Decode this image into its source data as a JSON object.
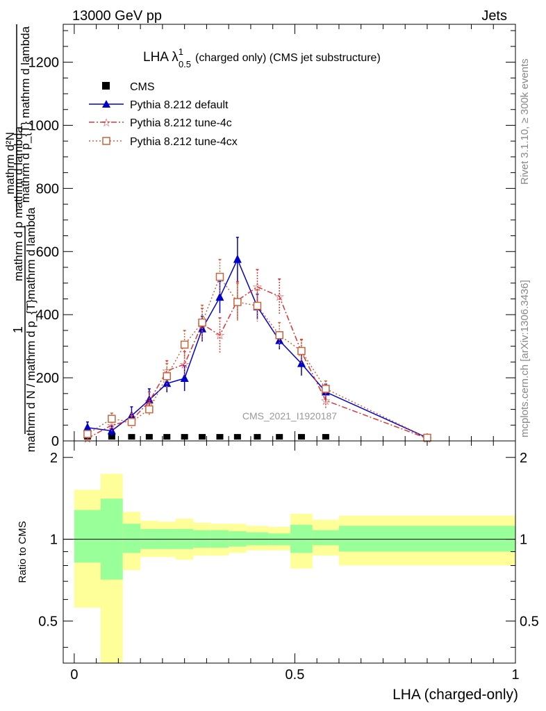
{
  "header": {
    "left": "13000 GeV pp",
    "right": "Jets"
  },
  "side": {
    "rivet": "Rivet 3.1.10, ≥ 300k events",
    "mcplots": "mcplots.cern.ch [arXiv:1306.3436]"
  },
  "watermark": "CMS_2021_I1920187",
  "colors": {
    "cms": "#000000",
    "default": "#0000cc",
    "tune4c": "#dd3333",
    "tune4cx": "#c8643c",
    "band1": "#99ff99",
    "band2": "#ffff99"
  },
  "chart_data": {
    "type": "line",
    "title": "LHA λ",
    "title_sup": "1",
    "title_sub": "0.5",
    "title_rest": "(charged only) (CMS jet substructure)",
    "xlabel": "LHA (charged-only)",
    "ylabel": {
      "numerator": "1",
      "denominator": "mathrm d N / mathrm d p_{T}mathrm d lambda",
      "mid": "mathrm d p mathrm d lambda",
      "num2": "mathrm d²N",
      "den2": "mathrm d p_{T} mathrm d lambda"
    },
    "xlim": [
      -0.025,
      1.0
    ],
    "ylim": [
      0,
      1320
    ],
    "xticks": [
      "0",
      "0.5",
      "1"
    ],
    "yticks": [
      "0",
      "200",
      "400",
      "600",
      "800",
      "1000",
      "1200"
    ],
    "legend": [
      "CMS",
      "Pythia 8.212 default",
      "Pythia 8.212 tune-4c",
      "Pythia 8.212 tune-4cx"
    ],
    "series": [
      {
        "name": "CMS",
        "marker": "square",
        "x": [
          0.03,
          0.085,
          0.13,
          0.17,
          0.21,
          0.25,
          0.29,
          0.33,
          0.37,
          0.415,
          0.465,
          0.515,
          0.57
        ],
        "y": [
          2,
          2,
          2,
          2,
          2,
          2,
          2,
          2,
          2,
          2,
          2,
          2,
          2
        ]
      },
      {
        "name": "Pythia 8.212 default",
        "marker": "triangle",
        "x": [
          0.03,
          0.085,
          0.13,
          0.17,
          0.21,
          0.25,
          0.29,
          0.33,
          0.37,
          0.415,
          0.465,
          0.515,
          0.57,
          0.8
        ],
        "y": [
          42,
          32,
          80,
          130,
          182,
          198,
          355,
          455,
          575,
          425,
          318,
          245,
          155,
          10
        ],
        "err": [
          18,
          15,
          28,
          35,
          28,
          40,
          40,
          50,
          70,
          40,
          28,
          38,
          25,
          5
        ]
      },
      {
        "name": "Pythia 8.212 tune-4c",
        "marker": "star",
        "x": [
          0.03,
          0.085,
          0.13,
          0.17,
          0.21,
          0.25,
          0.29,
          0.33,
          0.37,
          0.415,
          0.465,
          0.515,
          0.57,
          0.8
        ],
        "y": [
          8,
          50,
          65,
          125,
          222,
          243,
          370,
          335,
          445,
          488,
          458,
          282,
          128,
          8
        ],
        "err": [
          8,
          20,
          22,
          30,
          32,
          40,
          50,
          55,
          60,
          55,
          55,
          40,
          25,
          5
        ]
      },
      {
        "name": "Pythia 8.212 tune-4cx",
        "marker": "open-square",
        "x": [
          0.03,
          0.085,
          0.13,
          0.17,
          0.21,
          0.25,
          0.29,
          0.33,
          0.37,
          0.415,
          0.465,
          0.515,
          0.57,
          0.8
        ],
        "y": [
          22,
          70,
          60,
          100,
          205,
          305,
          375,
          520,
          440,
          428,
          335,
          285,
          165,
          10
        ],
        "err": [
          10,
          18,
          20,
          22,
          40,
          45,
          55,
          55,
          60,
          50,
          40,
          35,
          25,
          5
        ]
      }
    ],
    "ratio": {
      "ylabel": "Ratio to CMS",
      "ylim": [
        0.35,
        2.3
      ],
      "yticks": [
        "0.5",
        "1",
        "2"
      ],
      "bins": [
        {
          "lo": 0.0,
          "hi": 0.06,
          "g_lo": 0.82,
          "g_hi": 1.28,
          "y_lo": 0.56,
          "y_hi": 1.52
        },
        {
          "lo": 0.06,
          "hi": 0.11,
          "g_lo": 0.71,
          "g_hi": 1.41,
          "y_lo": 0.35,
          "y_hi": 1.74
        },
        {
          "lo": 0.11,
          "hi": 0.15,
          "g_lo": 0.89,
          "g_hi": 1.14,
          "y_lo": 0.77,
          "y_hi": 1.26
        },
        {
          "lo": 0.15,
          "hi": 0.19,
          "g_lo": 0.92,
          "g_hi": 1.09,
          "y_lo": 0.86,
          "y_hi": 1.17
        },
        {
          "lo": 0.19,
          "hi": 0.23,
          "g_lo": 0.92,
          "g_hi": 1.09,
          "y_lo": 0.86,
          "y_hi": 1.16
        },
        {
          "lo": 0.23,
          "hi": 0.27,
          "g_lo": 0.92,
          "g_hi": 1.09,
          "y_lo": 0.84,
          "y_hi": 1.19
        },
        {
          "lo": 0.27,
          "hi": 0.31,
          "g_lo": 0.93,
          "g_hi": 1.08,
          "y_lo": 0.87,
          "y_hi": 1.15
        },
        {
          "lo": 0.31,
          "hi": 0.35,
          "g_lo": 0.93,
          "g_hi": 1.08,
          "y_lo": 0.87,
          "y_hi": 1.14
        },
        {
          "lo": 0.35,
          "hi": 0.39,
          "g_lo": 0.94,
          "g_hi": 1.07,
          "y_lo": 0.89,
          "y_hi": 1.14
        },
        {
          "lo": 0.39,
          "hi": 0.44,
          "g_lo": 0.95,
          "g_hi": 1.06,
          "y_lo": 0.91,
          "y_hi": 1.12
        },
        {
          "lo": 0.44,
          "hi": 0.49,
          "g_lo": 0.95,
          "g_hi": 1.05,
          "y_lo": 0.91,
          "y_hi": 1.11
        },
        {
          "lo": 0.49,
          "hi": 0.54,
          "g_lo": 0.89,
          "g_hi": 1.13,
          "y_lo": 0.78,
          "y_hi": 1.24
        },
        {
          "lo": 0.54,
          "hi": 0.6,
          "g_lo": 0.95,
          "g_hi": 1.08,
          "y_lo": 0.87,
          "y_hi": 1.18
        },
        {
          "lo": 0.6,
          "hi": 1.0,
          "g_lo": 0.9,
          "g_hi": 1.12,
          "y_lo": 0.8,
          "y_hi": 1.22
        }
      ]
    }
  }
}
